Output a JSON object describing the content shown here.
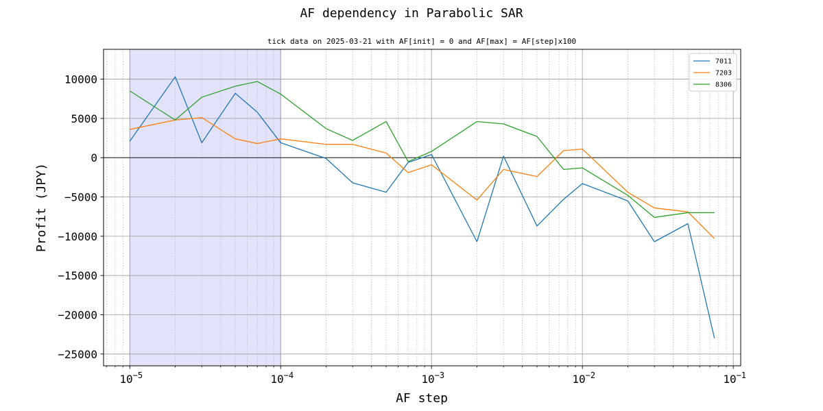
{
  "chart_data": {
    "type": "line",
    "title": "AF dependency in Parabolic SAR",
    "subtitle": "tick data on 2025-03-21 with AF[init] = 0 and AF[max] = AF[step]x100",
    "xlabel": "AF step",
    "ylabel": "Profit (JPY)",
    "xscale": "log",
    "xlim": [
      6.7e-06,
      0.112
    ],
    "ylim": [
      -26500,
      13800
    ],
    "x_ticks": [
      1e-05,
      0.0001,
      0.001,
      0.01,
      0.1
    ],
    "x_tick_labels": [
      {
        "base": "10",
        "exp": "−5"
      },
      {
        "base": "10",
        "exp": "−4"
      },
      {
        "base": "10",
        "exp": "−3"
      },
      {
        "base": "10",
        "exp": "−2"
      },
      {
        "base": "10",
        "exp": "−1"
      }
    ],
    "y_ticks": [
      10000,
      5000,
      0,
      -5000,
      -10000,
      -15000,
      -20000,
      -25000
    ],
    "y_tick_labels": [
      "10000",
      "5000",
      "0",
      "−5000",
      "−10000",
      "−15000",
      "−20000",
      "−25000"
    ],
    "highlight_span": [
      1e-05,
      0.0001
    ],
    "grid": true,
    "legend_position": "top-right",
    "x": [
      1e-05,
      2e-05,
      3e-05,
      5e-05,
      7e-05,
      0.0001,
      0.0002,
      0.0003,
      0.0005,
      0.0007,
      0.001,
      0.002,
      0.003,
      0.005,
      0.0075,
      0.01,
      0.02,
      0.03,
      0.05,
      0.075
    ],
    "series": [
      {
        "name": "7011",
        "color": "#1f77b4",
        "values": [
          2100,
          10300,
          1900,
          8200,
          5800,
          1900,
          -100,
          -3200,
          -4400,
          -600,
          400,
          -10700,
          200,
          -8700,
          -5300,
          -3300,
          -5500,
          -10700,
          -8400,
          -23000
        ]
      },
      {
        "name": "7203",
        "color": "#ff7f0e",
        "values": [
          3600,
          4800,
          5100,
          2400,
          1800,
          2400,
          1700,
          1700,
          600,
          -1900,
          -900,
          -5400,
          -1500,
          -2400,
          900,
          1100,
          -4400,
          -6400,
          -6900,
          -10300
        ]
      },
      {
        "name": "8306",
        "color": "#2ca02c",
        "values": [
          8500,
          4800,
          7700,
          9100,
          9700,
          8100,
          3700,
          2200,
          4600,
          -500,
          800,
          4600,
          4300,
          2700,
          -1500,
          -1300,
          -4800,
          -7600,
          -7000,
          -7000
        ]
      }
    ]
  }
}
